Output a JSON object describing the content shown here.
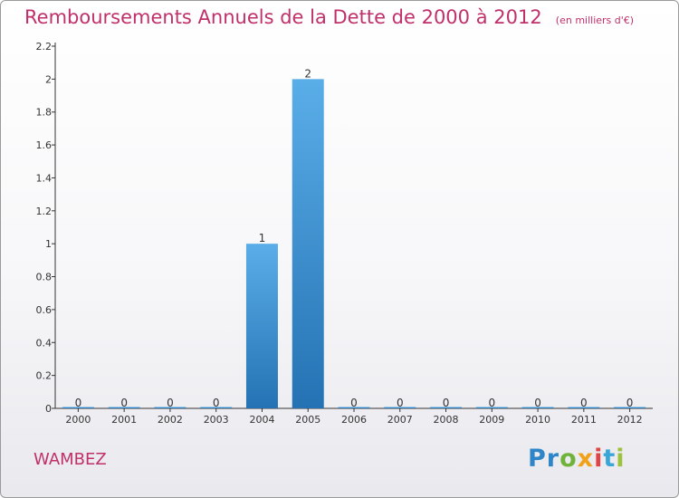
{
  "chart_data": {
    "type": "bar",
    "title": "Remboursements Annuels de la Dette de 2000 à 2012",
    "subtitle": "(en milliers d'€)",
    "xlabel": "",
    "ylabel": "",
    "categories": [
      "2000",
      "2001",
      "2002",
      "2003",
      "2004",
      "2005",
      "2006",
      "2007",
      "2008",
      "2009",
      "2010",
      "2011",
      "2012"
    ],
    "values": [
      0,
      0,
      0,
      0,
      1,
      2,
      0,
      0,
      0,
      0,
      0,
      0,
      0
    ],
    "ylim": [
      0,
      2.2
    ],
    "yticks": [
      0,
      0.2,
      0.4,
      0.6,
      0.8,
      1,
      1.2,
      1.4,
      1.6,
      1.8,
      2,
      2.2
    ],
    "ytick_labels": [
      "0",
      "0.2",
      "0.4",
      "0.6",
      "0.8",
      "1",
      "1.2",
      "1.4",
      "1.6",
      "1.8",
      "2",
      "2.2"
    ],
    "grid": false,
    "bar_color": "#3a90d4",
    "label_color": "#333333"
  },
  "footer": {
    "city": "WAMBEZ",
    "logo": "Proxiti",
    "logo_parts": [
      "Pr",
      "o",
      "x",
      "i",
      "t",
      "i"
    ]
  },
  "colors": {
    "title": "#c0306a",
    "axis": "#333333"
  }
}
